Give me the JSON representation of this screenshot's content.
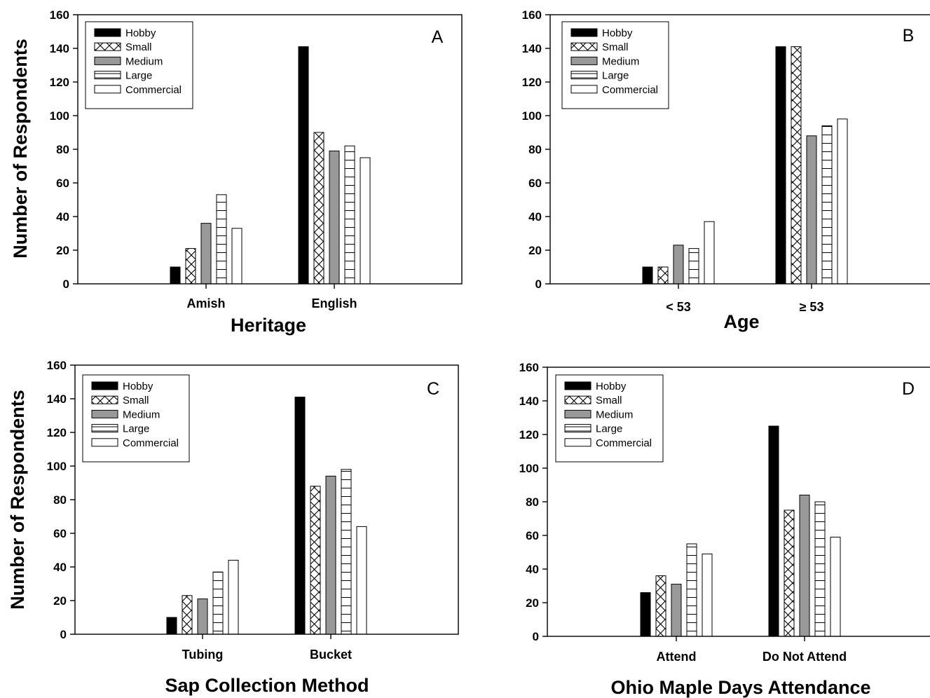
{
  "figure": {
    "ytitle": "Number of Respondents"
  },
  "legend": {
    "entries": [
      "Hobby",
      "Small",
      "Medium",
      "Large",
      "Commercial"
    ]
  },
  "colors": {
    "Hobby": "#000000",
    "Small": "#ffffff",
    "Medium": "#999999",
    "Large": "#ffffff",
    "Commercial": "#ffffff",
    "axis": "#000000"
  },
  "chart_data": [
    {
      "type": "bar",
      "panel": "A",
      "xlabel": "Heritage",
      "ylabel": "Number of Respondents",
      "ylim": [
        0,
        160
      ],
      "yticks": [
        0,
        20,
        40,
        60,
        80,
        100,
        120,
        140,
        160
      ],
      "categories": [
        "Amish",
        "English"
      ],
      "legend_position": "top-left",
      "grid": false,
      "series": [
        {
          "name": "Hobby",
          "values": [
            10,
            141
          ]
        },
        {
          "name": "Small",
          "values": [
            21,
            90
          ]
        },
        {
          "name": "Medium",
          "values": [
            36,
            79
          ]
        },
        {
          "name": "Large",
          "values": [
            53,
            82
          ]
        },
        {
          "name": "Commercial",
          "values": [
            33,
            75
          ]
        }
      ]
    },
    {
      "type": "bar",
      "panel": "B",
      "xlabel": "Age",
      "ylabel": "",
      "ylim": [
        0,
        160
      ],
      "yticks": [
        0,
        20,
        40,
        60,
        80,
        100,
        120,
        140,
        160
      ],
      "categories": [
        "< 53",
        "≥ 53"
      ],
      "legend_position": "top-left",
      "grid": false,
      "series": [
        {
          "name": "Hobby",
          "values": [
            10,
            141
          ]
        },
        {
          "name": "Small",
          "values": [
            10,
            141
          ]
        },
        {
          "name": "Medium",
          "values": [
            23,
            88
          ]
        },
        {
          "name": "Large",
          "values": [
            21,
            94
          ]
        },
        {
          "name": "Commercial",
          "values": [
            37,
            98
          ]
        }
      ]
    },
    {
      "type": "bar",
      "panel": "C",
      "xlabel": "Sap Collection Method",
      "ylabel": "Number of Respondents",
      "ylim": [
        0,
        160
      ],
      "yticks": [
        0,
        20,
        40,
        60,
        80,
        100,
        120,
        140,
        160
      ],
      "categories": [
        "Tubing",
        "Bucket"
      ],
      "legend_position": "top-left",
      "grid": false,
      "series": [
        {
          "name": "Hobby",
          "values": [
            10,
            141
          ]
        },
        {
          "name": "Small",
          "values": [
            23,
            88
          ]
        },
        {
          "name": "Medium",
          "values": [
            21,
            94
          ]
        },
        {
          "name": "Large",
          "values": [
            37,
            98
          ]
        },
        {
          "name": "Commercial",
          "values": [
            44,
            64
          ]
        }
      ]
    },
    {
      "type": "bar",
      "panel": "D",
      "xlabel": "Ohio Maple Days Attendance",
      "ylabel": "",
      "ylim": [
        0,
        160
      ],
      "yticks": [
        0,
        20,
        40,
        60,
        80,
        100,
        120,
        140,
        160
      ],
      "categories": [
        "Attend",
        "Do Not Attend"
      ],
      "legend_position": "top-left",
      "grid": false,
      "series": [
        {
          "name": "Hobby",
          "values": [
            26,
            125
          ]
        },
        {
          "name": "Small",
          "values": [
            36,
            75
          ]
        },
        {
          "name": "Medium",
          "values": [
            31,
            84
          ]
        },
        {
          "name": "Large",
          "values": [
            55,
            80
          ]
        },
        {
          "name": "Commercial",
          "values": [
            49,
            59
          ]
        }
      ]
    }
  ]
}
